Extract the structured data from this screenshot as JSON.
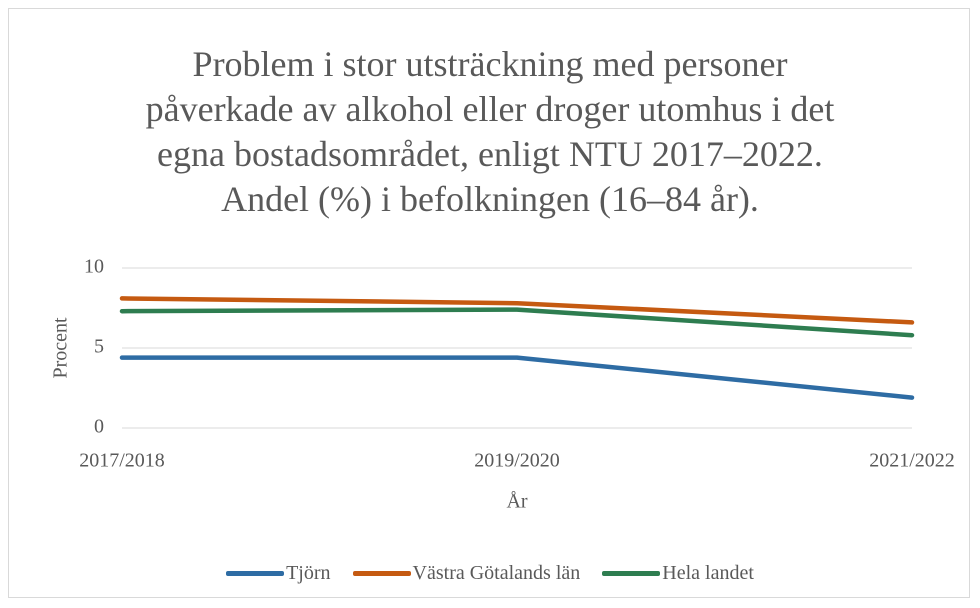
{
  "chart_data": {
    "type": "line",
    "title": "Problem i stor utsträckning med personer påverkade av alkohol eller droger utomhus i det egna bostadsområdet, enligt NTU 2017–2022. Andel (%) i befolkningen (16–84 år).",
    "x_label": "År",
    "y_label": "Procent",
    "categories": [
      "2017/2018",
      "2019/2020",
      "2021/2022"
    ],
    "series": [
      {
        "name": "Tjörn",
        "color": "#2e6ca4",
        "values": [
          4.4,
          4.4,
          1.9
        ]
      },
      {
        "name": "Västra Götalands län",
        "color": "#c55a11",
        "values": [
          8.1,
          7.8,
          6.6
        ]
      },
      {
        "name": "Hela landet",
        "color": "#2e7d50",
        "values": [
          7.3,
          7.4,
          5.8
        ]
      }
    ],
    "ylim": [
      0,
      10
    ],
    "yticks": [
      0,
      5,
      10
    ],
    "grid": true
  }
}
